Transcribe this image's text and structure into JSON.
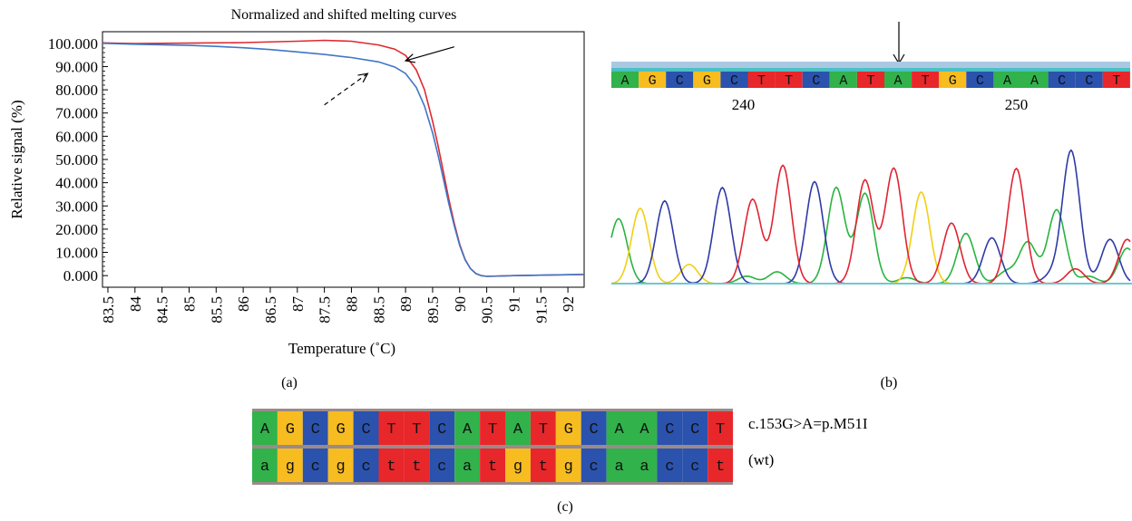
{
  "figure": {
    "caption_a": "(a)",
    "caption_b": "(b)",
    "caption_c": "(c)"
  },
  "chart_data": [
    {
      "type": "line",
      "title": "Normalized and shifted melting curves",
      "xlabel": "Temperature (˚C)",
      "ylabel": "Relative signal (%)",
      "xlim": [
        83.4,
        92.3
      ],
      "ylim": [
        -5,
        105
      ],
      "x_ticks": [
        "83.5",
        "84",
        "84.5",
        "85",
        "85.5",
        "86",
        "86.5",
        "87",
        "87.5",
        "88",
        "88.5",
        "89",
        "89.5",
        "90",
        "90.5",
        "91",
        "91.5",
        "92"
      ],
      "y_ticks": [
        "0.000",
        "10.000",
        "20.000",
        "30.000",
        "40.000",
        "50.000",
        "60.000",
        "70.000",
        "80.000",
        "90.000",
        "100.000"
      ],
      "grid": false,
      "series": [
        {
          "color": "#e0282e",
          "x": [
            83.4,
            84.0,
            85.0,
            86.0,
            87.0,
            87.5,
            88.0,
            88.5,
            88.8,
            89.0,
            89.2,
            89.35,
            89.5,
            89.6,
            89.7,
            89.8,
            89.9,
            90.0,
            90.1,
            90.2,
            90.3,
            90.4,
            90.5,
            90.7,
            91.0,
            91.5,
            92.0,
            92.3
          ],
          "y": [
            100.2,
            99.9,
            100.1,
            100.3,
            100.9,
            101.3,
            100.9,
            99.3,
            97.5,
            94.8,
            88.5,
            80.0,
            66.5,
            56.0,
            44.5,
            33.0,
            22.5,
            13.5,
            7.0,
            3.0,
            0.9,
            0.0,
            -0.3,
            -0.2,
            0.0,
            0.2,
            0.4,
            0.5
          ]
        },
        {
          "color": "#3f76c6",
          "x": [
            83.4,
            84.0,
            85.0,
            85.5,
            86.0,
            86.5,
            87.0,
            87.5,
            88.0,
            88.5,
            88.8,
            89.0,
            89.2,
            89.35,
            89.5,
            89.6,
            89.7,
            89.8,
            89.9,
            90.0,
            90.1,
            90.2,
            90.3,
            90.4,
            90.5,
            90.7,
            91.0,
            91.5,
            92.0,
            92.3
          ],
          "y": [
            100.0,
            99.6,
            99.1,
            98.7,
            98.1,
            97.3,
            96.3,
            95.2,
            93.9,
            92.0,
            89.8,
            87.0,
            81.0,
            73.0,
            61.5,
            52.0,
            41.5,
            31.0,
            21.5,
            13.0,
            6.8,
            3.0,
            0.8,
            0.0,
            -0.3,
            -0.2,
            0.0,
            0.2,
            0.4,
            0.5
          ]
        }
      ],
      "annotations": [
        {
          "style": "solid-arrow",
          "from": [
            89.9,
            98.5
          ],
          "to": [
            89.0,
            92.5
          ]
        },
        {
          "style": "dashed-arrow",
          "from": [
            87.5,
            73.5
          ],
          "to": [
            88.3,
            87.0
          ]
        }
      ]
    },
    {
      "type": "line",
      "title": "",
      "bases": [
        "A",
        "G",
        "C",
        "G",
        "C",
        "T",
        "T",
        "C",
        "A",
        "T",
        "A",
        "T",
        "G",
        "C",
        "A",
        "A",
        "C",
        "C",
        "T"
      ],
      "position_labels": [
        {
          "label": "240",
          "base_index": 5
        },
        {
          "label": "250",
          "base_index": 15
        }
      ],
      "arrow_base_index": 10,
      "x_range": [
        0,
        360
      ],
      "y_range": [
        0,
        100
      ],
      "traces": [
        {
          "channel": "G",
          "color": "#27b43f",
          "peaks": [
            [
              5,
              44
            ],
            [
              94,
              5
            ],
            [
              115,
              8
            ],
            [
              156,
              65
            ],
            [
              176,
              61
            ],
            [
              205,
              4
            ],
            [
              246,
              34
            ],
            [
              274,
              8
            ],
            [
              289,
              28
            ],
            [
              309,
              50
            ],
            [
              331,
              5
            ],
            [
              358,
              24
            ]
          ]
        },
        {
          "channel": "A",
          "color": "#f2cf12",
          "peaks": [
            [
              20,
              51
            ],
            [
              54,
              13
            ],
            [
              215,
              62
            ]
          ]
        },
        {
          "channel": "C",
          "color": "#2e3aa6",
          "peaks": [
            [
              37,
              56
            ],
            [
              77,
              65
            ],
            [
              141,
              69
            ],
            [
              264,
              31
            ],
            [
              305,
              5
            ],
            [
              319,
              90
            ],
            [
              346,
              30
            ]
          ]
        },
        {
          "channel": "T",
          "color": "#e02432",
          "peaks": [
            [
              98,
              57
            ],
            [
              119,
              80
            ],
            [
              176,
              70
            ],
            [
              196,
              78
            ],
            [
              236,
              41
            ],
            [
              281,
              78
            ],
            [
              322,
              10
            ],
            [
              358,
              30
            ]
          ]
        }
      ]
    }
  ],
  "seq_c": {
    "mutant": [
      "A",
      "G",
      "C",
      "G",
      "C",
      "T",
      "T",
      "C",
      "A",
      "T",
      "A",
      "T",
      "G",
      "C",
      "A",
      "A",
      "C",
      "C",
      "T"
    ],
    "wild": [
      "a",
      "g",
      "c",
      "g",
      "c",
      "t",
      "t",
      "c",
      "a",
      "t",
      "g",
      "t",
      "g",
      "c",
      "a",
      "a",
      "c",
      "c",
      "t"
    ],
    "mutant_label": "c.153G>A=p.M51I",
    "wild_label": "(wt)"
  },
  "base_colors": {
    "A": "#31b24b",
    "G": "#f7bc1f",
    "C": "#2b52ad",
    "T": "#e8272b"
  }
}
